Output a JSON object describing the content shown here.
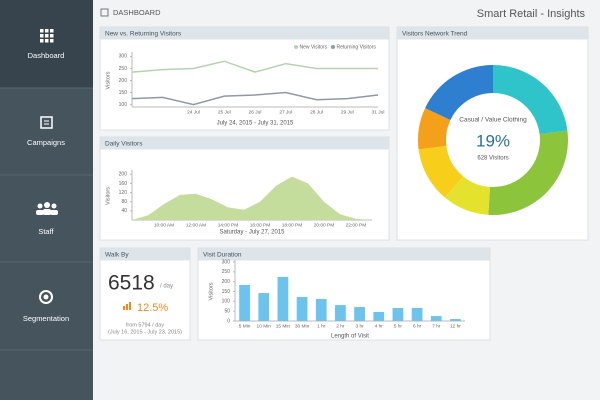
{
  "header": {
    "section": "DASHBOARD",
    "app_title": "Smart Retail - Insights"
  },
  "sidebar": {
    "items": [
      {
        "label": "Dashboard"
      },
      {
        "label": "Campaigns"
      },
      {
        "label": "Staff"
      },
      {
        "label": "Segmentation"
      }
    ]
  },
  "walk_by": {
    "title": "Walk By",
    "value": 6518,
    "unit": "/ day",
    "change": "12.5%",
    "from": "from 5794 / day",
    "period": "(July 16, 2015 - July 23, 2015)"
  },
  "chart_data": [
    {
      "type": "line",
      "title": "New vs. Returning Visitors",
      "x_label": "July 24, 2015 - July 31, 2015",
      "y_label": "Visitors",
      "categories": [
        null,
        null,
        "24 Jul",
        "25 Jul",
        "26 Jul",
        "27 Jul",
        "28 Jul",
        "29 Jul",
        "31 Jul"
      ],
      "series": [
        {
          "name": "New Visitors",
          "color": "#b5d3ae",
          "values": [
            235,
            245,
            250,
            280,
            235,
            270,
            250,
            250,
            250
          ]
        },
        {
          "name": "Returning Visitors",
          "color": "#8c9ba5",
          "values": [
            125,
            130,
            100,
            135,
            140,
            150,
            120,
            125,
            140
          ]
        }
      ],
      "ylim": [
        90,
        310
      ],
      "yticks": [
        100,
        150,
        200,
        250,
        300
      ]
    },
    {
      "type": "area",
      "title": "Daily Visitors",
      "x_label": "Saturday - July 27, 2015",
      "y_label": "Visitors",
      "categories": [
        null,
        null,
        "10:00 AM",
        null,
        "12:00 AM",
        null,
        "14:00 PM",
        null,
        "16:00 PM",
        null,
        "18:00 PM",
        null,
        "20:00 PM",
        null,
        "22:00 PM",
        null
      ],
      "values": [
        0,
        20,
        70,
        110,
        115,
        90,
        55,
        45,
        80,
        150,
        190,
        160,
        80,
        25,
        5,
        0
      ],
      "color": "#c5dd9c",
      "ylim": [
        0,
        210
      ],
      "yticks": [
        40,
        80,
        120,
        160,
        200
      ]
    },
    {
      "type": "bar",
      "title": "Visit Duration",
      "x_label": "Length of Visit",
      "y_label": "Visitors",
      "categories": [
        "5 Min",
        "10 Min",
        "15 Min",
        "30 Min",
        "1 hr",
        "2 hr",
        "3 hr",
        "4 hr",
        "5 hr",
        "6 hr",
        "7 hr",
        "12 hr"
      ],
      "values": [
        183,
        142,
        224,
        122,
        112,
        81,
        71,
        46,
        66,
        66,
        25,
        10
      ],
      "color": "#6cc3ee",
      "ylim": [
        0,
        300
      ],
      "yticks": [
        0,
        50,
        100,
        150,
        200,
        250,
        300
      ]
    },
    {
      "type": "pie",
      "title": "Visitors Network Trend",
      "values": [
        23,
        28,
        10,
        12,
        9,
        18
      ],
      "colors": [
        "#2ec4c9",
        "#8cc43c",
        "#e4e22c",
        "#f7cf1b",
        "#f5a01a",
        "#2e7fd0"
      ],
      "highlight": {
        "label": "Casual / Value Clothing",
        "value": 19,
        "value_label": "19%",
        "visitors_label": "628 Visitors"
      }
    }
  ]
}
